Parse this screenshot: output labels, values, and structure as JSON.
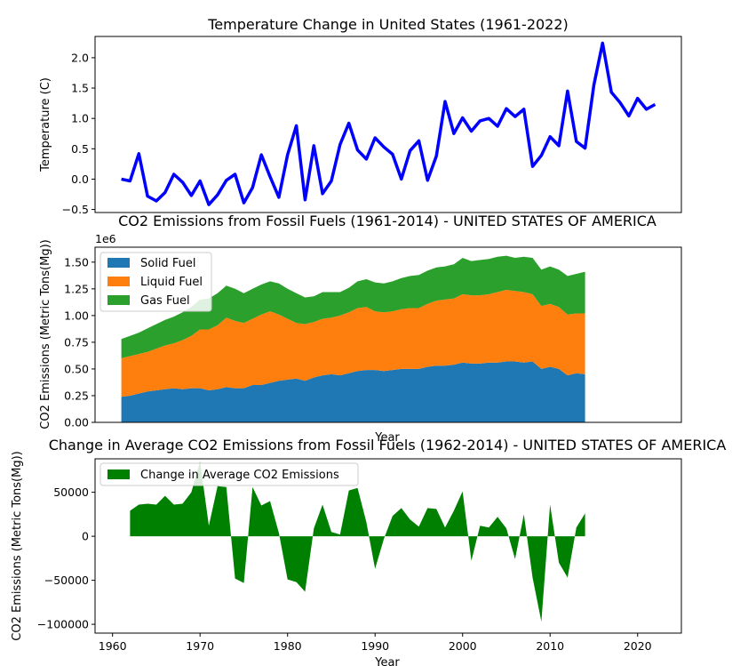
{
  "chart_data": [
    {
      "type": "line",
      "title": "Temperature Change in United States (1961-2022)",
      "xlabel": "",
      "ylabel": "Temperature (C)",
      "xlim": [
        1958,
        2025
      ],
      "ylim": [
        -0.55,
        2.35
      ],
      "yticks": [
        -0.5,
        0.0,
        0.5,
        1.0,
        1.5,
        2.0
      ],
      "ytick_labels": [
        "−0.5",
        "0.0",
        "0.5",
        "1.0",
        "1.5",
        "2.0"
      ],
      "color": "#0000ff",
      "x": [
        1961,
        1962,
        1963,
        1964,
        1965,
        1966,
        1967,
        1968,
        1969,
        1970,
        1971,
        1972,
        1973,
        1974,
        1975,
        1976,
        1977,
        1978,
        1979,
        1980,
        1981,
        1982,
        1983,
        1984,
        1985,
        1986,
        1987,
        1988,
        1989,
        1990,
        1991,
        1992,
        1993,
        1994,
        1995,
        1996,
        1997,
        1998,
        1999,
        2000,
        2001,
        2002,
        2003,
        2004,
        2005,
        2006,
        2007,
        2008,
        2009,
        2010,
        2011,
        2012,
        2013,
        2014,
        2015,
        2016,
        2017,
        2018,
        2019,
        2020,
        2021,
        2022
      ],
      "y": [
        0.0,
        -0.03,
        0.42,
        -0.28,
        -0.36,
        -0.22,
        0.08,
        -0.05,
        -0.27,
        -0.03,
        -0.42,
        -0.26,
        -0.02,
        0.08,
        -0.39,
        -0.14,
        0.4,
        0.04,
        -0.3,
        0.4,
        0.88,
        -0.34,
        0.55,
        -0.24,
        -0.03,
        0.57,
        0.92,
        0.48,
        0.33,
        0.68,
        0.53,
        0.41,
        0.0,
        0.47,
        0.63,
        -0.02,
        0.38,
        1.28,
        0.75,
        1.01,
        0.79,
        0.96,
        1.0,
        0.87,
        1.16,
        1.03,
        1.15,
        0.21,
        0.39,
        0.7,
        0.55,
        1.45,
        0.62,
        0.51,
        1.55,
        2.24,
        1.43,
        1.26,
        1.04,
        1.33,
        1.15,
        1.23
      ]
    },
    {
      "type": "area",
      "stacked": true,
      "title": "CO2 Emissions from Fossil Fuels (1961-2014) - UNITED STATES OF AMERICA",
      "xlabel": "Year",
      "ylabel": "CO2 Emissions (Metric Tons(Mg))",
      "offset_label": "1e6",
      "xlim": [
        1958,
        2025
      ],
      "ylim": [
        0,
        1.64
      ],
      "yticks": [
        0,
        0.25,
        0.5,
        0.75,
        1.0,
        1.25,
        1.5
      ],
      "ytick_labels": [
        "0.00",
        "0.25",
        "0.50",
        "0.75",
        "1.00",
        "1.25",
        "1.50"
      ],
      "legend_position": "upper-left",
      "x": [
        1961,
        1962,
        1963,
        1964,
        1965,
        1966,
        1967,
        1968,
        1969,
        1970,
        1971,
        1972,
        1973,
        1974,
        1975,
        1976,
        1977,
        1978,
        1979,
        1980,
        1981,
        1982,
        1983,
        1984,
        1985,
        1986,
        1987,
        1988,
        1989,
        1990,
        1991,
        1992,
        1993,
        1994,
        1995,
        1996,
        1997,
        1998,
        1999,
        2000,
        2001,
        2002,
        2003,
        2004,
        2005,
        2006,
        2007,
        2008,
        2009,
        2010,
        2011,
        2012,
        2013,
        2014
      ],
      "series": [
        {
          "name": "Solid Fuel",
          "color": "#1f77b4",
          "values": [
            0.24,
            0.25,
            0.27,
            0.29,
            0.3,
            0.31,
            0.32,
            0.31,
            0.32,
            0.32,
            0.3,
            0.31,
            0.33,
            0.32,
            0.32,
            0.35,
            0.35,
            0.37,
            0.39,
            0.4,
            0.41,
            0.39,
            0.42,
            0.44,
            0.45,
            0.44,
            0.46,
            0.48,
            0.49,
            0.49,
            0.48,
            0.49,
            0.5,
            0.5,
            0.5,
            0.52,
            0.53,
            0.53,
            0.54,
            0.56,
            0.55,
            0.55,
            0.56,
            0.56,
            0.57,
            0.57,
            0.56,
            0.57,
            0.5,
            0.52,
            0.5,
            0.44,
            0.46,
            0.45
          ]
        },
        {
          "name": "Liquid Fuel",
          "color": "#ff7f0e",
          "values": [
            0.36,
            0.37,
            0.37,
            0.37,
            0.39,
            0.41,
            0.42,
            0.46,
            0.49,
            0.55,
            0.57,
            0.6,
            0.65,
            0.63,
            0.61,
            0.62,
            0.66,
            0.67,
            0.62,
            0.57,
            0.52,
            0.53,
            0.52,
            0.53,
            0.53,
            0.56,
            0.57,
            0.59,
            0.59,
            0.55,
            0.55,
            0.55,
            0.56,
            0.57,
            0.57,
            0.59,
            0.61,
            0.62,
            0.62,
            0.64,
            0.64,
            0.64,
            0.64,
            0.66,
            0.67,
            0.66,
            0.66,
            0.63,
            0.59,
            0.59,
            0.58,
            0.57,
            0.56,
            0.57
          ]
        },
        {
          "name": "Gas Fuel",
          "color": "#2ca02c",
          "values": [
            0.18,
            0.19,
            0.2,
            0.22,
            0.23,
            0.24,
            0.25,
            0.26,
            0.27,
            0.28,
            0.29,
            0.3,
            0.3,
            0.3,
            0.28,
            0.28,
            0.28,
            0.28,
            0.29,
            0.28,
            0.28,
            0.25,
            0.24,
            0.25,
            0.24,
            0.22,
            0.23,
            0.25,
            0.26,
            0.27,
            0.27,
            0.28,
            0.29,
            0.3,
            0.31,
            0.31,
            0.31,
            0.31,
            0.32,
            0.34,
            0.32,
            0.33,
            0.33,
            0.33,
            0.32,
            0.31,
            0.33,
            0.34,
            0.34,
            0.35,
            0.35,
            0.36,
            0.37,
            0.39
          ]
        }
      ]
    },
    {
      "type": "area",
      "title": "Change in Average CO2 Emissions from Fossil Fuels (1962-2014) - UNITED STATES OF AMERICA",
      "xlabel": "Year",
      "ylabel": "CO2 Emissions (Metric Tons(Mg))",
      "xlim": [
        1958,
        2025
      ],
      "ylim": [
        -110000,
        88000
      ],
      "yticks": [
        -100000,
        -50000,
        0,
        50000
      ],
      "ytick_labels": [
        "−100000",
        "−50000",
        "0",
        "50000"
      ],
      "xticks": [
        1960,
        1970,
        1980,
        1990,
        2000,
        2010,
        2020
      ],
      "legend_position": "upper-left",
      "series": [
        {
          "name": "Change in Average CO2 Emissions",
          "color": "#008000",
          "x": [
            1962,
            1963,
            1964,
            1965,
            1966,
            1967,
            1968,
            1969,
            1970,
            1971,
            1972,
            1973,
            1974,
            1975,
            1976,
            1977,
            1978,
            1979,
            1980,
            1981,
            1982,
            1983,
            1984,
            1985,
            1986,
            1987,
            1988,
            1989,
            1990,
            1991,
            1992,
            1993,
            1994,
            1995,
            1996,
            1997,
            1998,
            1999,
            2000,
            2001,
            2002,
            2003,
            2004,
            2005,
            2006,
            2007,
            2008,
            2009,
            2010,
            2011,
            2012,
            2013,
            2014
          ],
          "values": [
            29000,
            36000,
            37000,
            36000,
            46000,
            36000,
            37000,
            50000,
            85000,
            12000,
            57000,
            56000,
            -48000,
            -53000,
            56000,
            35000,
            40000,
            4000,
            -49000,
            -52000,
            -63000,
            9000,
            36000,
            5000,
            2000,
            52000,
            55000,
            16000,
            -37000,
            -3000,
            23000,
            32000,
            19000,
            11000,
            32000,
            31000,
            10000,
            29000,
            51000,
            -28000,
            12000,
            10000,
            22000,
            9000,
            -26000,
            25000,
            -47000,
            -97000,
            36000,
            -30000,
            -47000,
            10000,
            26000
          ]
        }
      ]
    }
  ]
}
